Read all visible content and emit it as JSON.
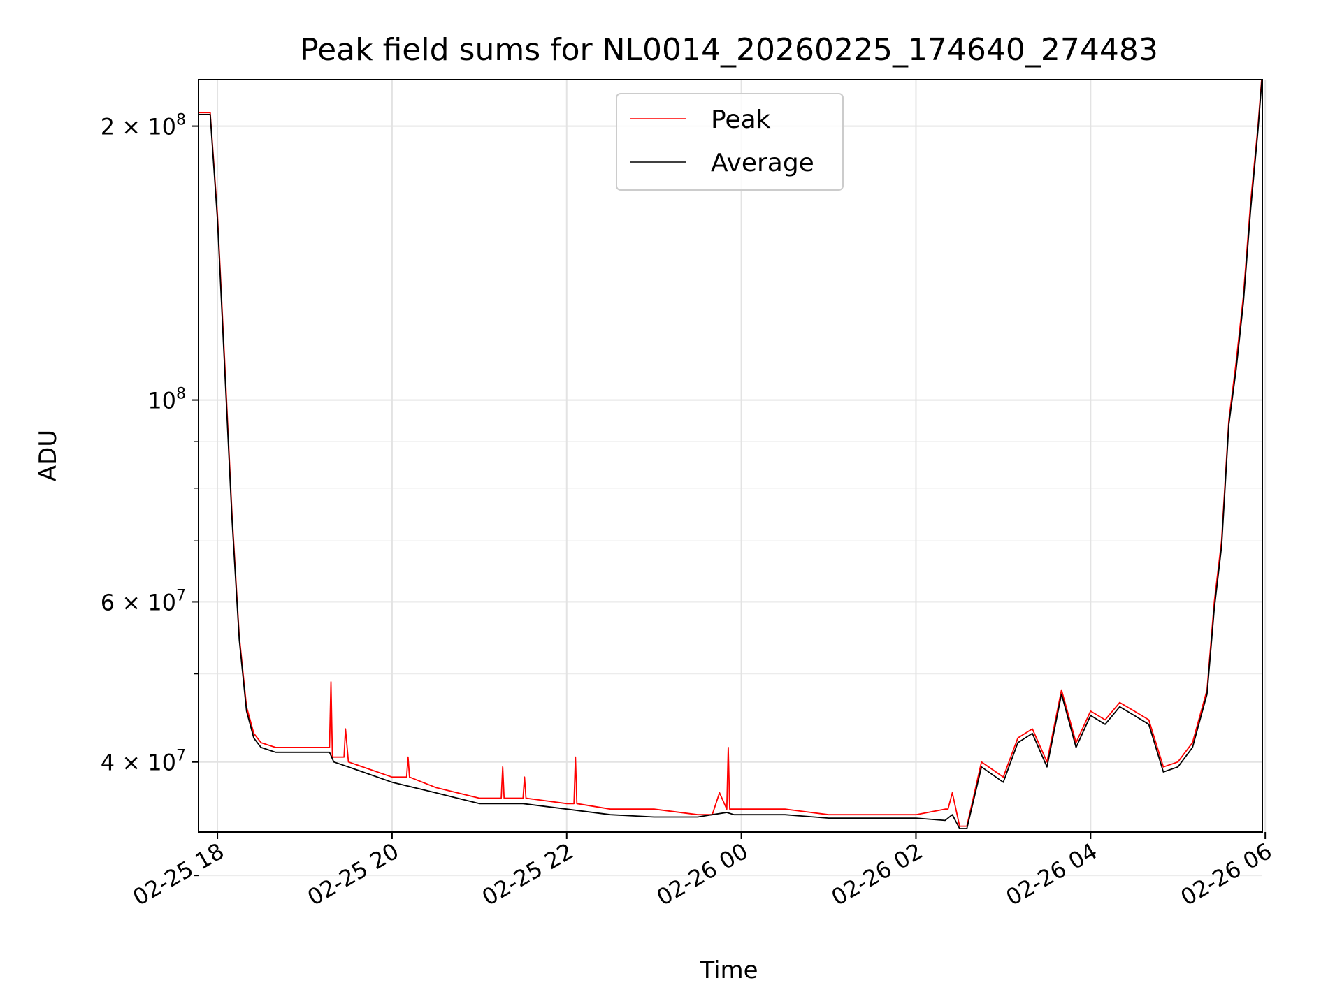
{
  "chart_data": {
    "type": "line",
    "title": "Peak field sums for NL0014_20260225_174640_274483",
    "xlabel": "Time",
    "ylabel": "ADU",
    "yscale": "log",
    "xlim": [
      "02-25 17:47",
      "02-26 05:58"
    ],
    "ylim": [
      33500000,
      225000000
    ],
    "grid": true,
    "legend_position": "upper center",
    "x_tick_labels": [
      "02-25 18",
      "02-25 20",
      "02-25 22",
      "02-26 00",
      "02-26 02",
      "02-26 04",
      "02-26 06"
    ],
    "y_tick_labels": [
      {
        "value": 200000000,
        "base": "2 × 10",
        "exp": "8"
      },
      {
        "value": 100000000,
        "base": "10",
        "exp": "8"
      },
      {
        "value": 60000000,
        "base": "6 × 10",
        "exp": "7"
      },
      {
        "value": 40000000,
        "base": "4 × 10",
        "exp": "7"
      }
    ],
    "series": [
      {
        "name": "Peak",
        "color": "#ff0000",
        "x": [
          "02-25 17:47",
          "02-25 17:55",
          "02-25 18:00",
          "02-25 18:05",
          "02-25 18:10",
          "02-25 18:15",
          "02-25 18:20",
          "02-25 18:25",
          "02-25 18:30",
          "02-25 18:40",
          "02-25 19:00",
          "02-25 19:17",
          "02-25 19:18",
          "02-25 19:19",
          "02-25 19:27",
          "02-25 19:28",
          "02-25 19:30",
          "02-25 20:00",
          "02-25 20:10",
          "02-25 20:11",
          "02-25 20:12",
          "02-25 20:30",
          "02-25 21:00",
          "02-25 21:15",
          "02-25 21:16",
          "02-25 21:17",
          "02-25 21:30",
          "02-25 21:31",
          "02-25 21:32",
          "02-25 22:00",
          "02-25 22:05",
          "02-25 22:06",
          "02-25 22:07",
          "02-25 22:30",
          "02-25 23:00",
          "02-25 23:30",
          "02-25 23:40",
          "02-25 23:45",
          "02-25 23:50",
          "02-25 23:51",
          "02-25 23:52",
          "02-25 23:55",
          "02-26 00:30",
          "02-26 01:00",
          "02-26 01:30",
          "02-26 02:00",
          "02-26 02:20",
          "02-26 02:22",
          "02-26 02:25",
          "02-26 02:30",
          "02-26 02:35",
          "02-26 02:45",
          "02-26 03:00",
          "02-26 03:10",
          "02-26 03:20",
          "02-26 03:30",
          "02-26 03:40",
          "02-26 03:50",
          "02-26 04:00",
          "02-26 04:10",
          "02-26 04:20",
          "02-26 04:30",
          "02-26 04:40",
          "02-26 04:50",
          "02-26 05:00",
          "02-26 05:10",
          "02-26 05:20",
          "02-26 05:25",
          "02-26 05:30",
          "02-26 05:35",
          "02-26 05:40",
          "02-26 05:45",
          "02-26 05:50",
          "02-26 05:55",
          "02-26 05:58"
        ],
        "y": [
          207000000,
          207000000,
          160000000,
          110000000,
          75000000,
          55000000,
          46000000,
          43000000,
          42000000,
          41500000,
          41500000,
          41500000,
          49000000,
          40500000,
          40500000,
          43500000,
          40000000,
          38500000,
          38500000,
          40500000,
          38500000,
          37500000,
          36500000,
          36500000,
          39500000,
          36500000,
          36500000,
          38500000,
          36500000,
          36000000,
          36000000,
          40500000,
          36000000,
          35500000,
          35500000,
          35000000,
          35000000,
          37000000,
          35500000,
          41500000,
          35500000,
          35500000,
          35500000,
          35000000,
          35000000,
          35000000,
          35500000,
          35500000,
          37000000,
          34000000,
          34000000,
          40000000,
          38500000,
          42500000,
          43500000,
          40000000,
          48000000,
          42000000,
          45500000,
          44500000,
          46500000,
          45500000,
          44500000,
          39500000,
          40000000,
          42000000,
          48000000,
          60000000,
          70000000,
          95000000,
          110000000,
          130000000,
          165000000,
          200000000,
          230000000
        ]
      },
      {
        "name": "Average",
        "color": "#000000",
        "x": [
          "02-25 17:47",
          "02-25 17:55",
          "02-25 18:00",
          "02-25 18:05",
          "02-25 18:10",
          "02-25 18:15",
          "02-25 18:20",
          "02-25 18:25",
          "02-25 18:30",
          "02-25 18:40",
          "02-25 19:00",
          "02-25 19:17",
          "02-25 19:20",
          "02-25 19:30",
          "02-25 20:00",
          "02-25 20:30",
          "02-25 21:00",
          "02-25 21:30",
          "02-25 22:00",
          "02-25 22:30",
          "02-25 23:00",
          "02-25 23:30",
          "02-25 23:40",
          "02-25 23:50",
          "02-25 23:55",
          "02-26 00:30",
          "02-26 01:00",
          "02-26 01:30",
          "02-26 02:00",
          "02-26 02:20",
          "02-26 02:25",
          "02-26 02:30",
          "02-26 02:35",
          "02-26 02:45",
          "02-26 03:00",
          "02-26 03:10",
          "02-26 03:20",
          "02-26 03:30",
          "02-26 03:40",
          "02-26 03:50",
          "02-26 04:00",
          "02-26 04:10",
          "02-26 04:20",
          "02-26 04:30",
          "02-26 04:40",
          "02-26 04:50",
          "02-26 05:00",
          "02-26 05:10",
          "02-26 05:20",
          "02-26 05:25",
          "02-26 05:30",
          "02-26 05:35",
          "02-26 05:40",
          "02-26 05:45",
          "02-26 05:50",
          "02-26 05:55",
          "02-26 05:58"
        ],
        "y": [
          206000000,
          206000000,
          158000000,
          108000000,
          74000000,
          54500000,
          45500000,
          42500000,
          41500000,
          41000000,
          41000000,
          41000000,
          40000000,
          39500000,
          38000000,
          37000000,
          36000000,
          36000000,
          35500000,
          35000000,
          34800000,
          34800000,
          35000000,
          35200000,
          35000000,
          35000000,
          34700000,
          34700000,
          34700000,
          34500000,
          35000000,
          33800000,
          33800000,
          39500000,
          38000000,
          42000000,
          43000000,
          39500000,
          47500000,
          41500000,
          45000000,
          44000000,
          46000000,
          45000000,
          44000000,
          39000000,
          39500000,
          41500000,
          47500000,
          59000000,
          69000000,
          94000000,
          108000000,
          128000000,
          162000000,
          198000000,
          228000000
        ]
      }
    ]
  }
}
